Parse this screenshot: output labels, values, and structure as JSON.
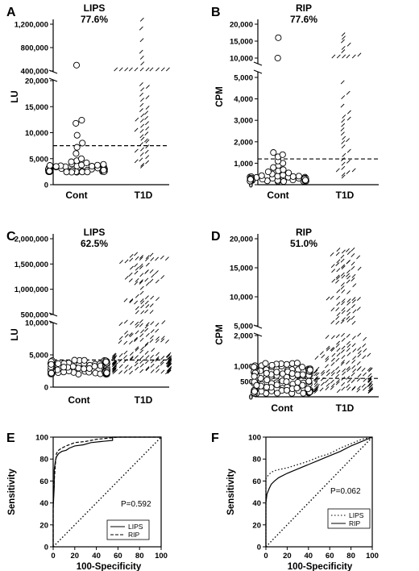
{
  "chart_data": [
    {
      "panel": "A",
      "type": "scatter",
      "title": "LIPS",
      "subtitle": "77.6%",
      "ylabel": "LU",
      "categories": [
        "Cont",
        "T1D"
      ],
      "y_axis_broken": true,
      "yticks_lower": [
        "0",
        "5,000",
        "10,000",
        "15,000",
        "20,000"
      ],
      "yticks_upper": [
        "400,000",
        "800,000",
        "1,200,000"
      ],
      "cutoff": 7500,
      "series": [
        {
          "category": "Cont",
          "marker": "circle",
          "values": [
            2400,
            2500,
            2600,
            2700,
            2800,
            2900,
            3000,
            3100,
            3200,
            3400,
            3600,
            3800,
            4000,
            4200,
            4600,
            5000,
            6000,
            7200,
            8000,
            9500,
            11800,
            12400,
            2450,
            2550,
            2650,
            2750,
            2850,
            2950,
            3050,
            3150,
            3250,
            3350,
            3450,
            3550,
            3650,
            3750,
            2500,
            2700,
            2900,
            3100,
            3300,
            2600,
            2800,
            3000,
            3200,
            3500,
            2400,
            2600,
            2800,
            3000,
            3200,
            3400,
            2450,
            2650,
            2850,
            3050,
            3250,
            2550,
            2750,
            2950,
            3150,
            2500,
            2700,
            2900,
            3100,
            2600,
            2800,
            3000,
            2450,
            2650,
            2850,
            3050,
            2550,
            2750,
            2950,
            2500,
            2700,
            2900,
            2600,
            2800,
            4400,
            3900,
            3700,
            500000
          ]
        },
        {
          "category": "T1D",
          "marker": "triangle",
          "values": [
            3500,
            4000,
            4500,
            5000,
            5500,
            6000,
            6500,
            7000,
            7500,
            8000,
            8500,
            9000,
            9500,
            10000,
            10500,
            11000,
            11500,
            12000,
            12500,
            13000,
            13500,
            14000,
            15000,
            16000,
            17000,
            18000,
            19000,
            3200,
            4200,
            6200,
            8200,
            10200,
            12200,
            14500,
            16500,
            18500,
            200000,
            200000,
            200000,
            200000,
            200000,
            200000,
            200000,
            200000,
            250000,
            300000,
            400000,
            500000,
            600000,
            700000,
            900000,
            1100000,
            1250000
          ]
        }
      ]
    },
    {
      "panel": "B",
      "type": "scatter",
      "title": "RIP",
      "subtitle": "77.6%",
      "ylabel": "CPM",
      "categories": [
        "Cont",
        "T1D"
      ],
      "y_axis_broken": true,
      "yticks_lower": [
        "0",
        "1,000",
        "2,000",
        "3,000",
        "4,000",
        "5,000"
      ],
      "yticks_upper": [
        "10,000",
        "15,000",
        "20,000"
      ],
      "cutoff": 1200,
      "series": [
        {
          "category": "Cont",
          "marker": "circle",
          "values": [
            150,
            200,
            250,
            300,
            350,
            400,
            450,
            500,
            550,
            600,
            650,
            700,
            800,
            900,
            1000,
            1100,
            1300,
            1400,
            1500,
            180,
            220,
            260,
            300,
            340,
            380,
            420,
            160,
            200,
            240,
            280,
            320,
            360,
            400,
            170,
            210,
            250,
            290,
            330,
            370,
            190,
            230,
            270,
            310,
            350,
            150,
            190,
            230,
            270,
            310,
            180,
            220,
            260,
            300,
            160,
            200,
            240,
            280,
            170,
            210,
            250,
            9000,
            16000
          ]
        },
        {
          "category": "T1D",
          "marker": "triangle",
          "values": [
            300,
            400,
            500,
            600,
            700,
            900,
            1100,
            1300,
            1500,
            1700,
            1900,
            2100,
            2300,
            2500,
            2700,
            2900,
            3100,
            3300,
            3600,
            4000,
            4200,
            4700,
            5500,
            6500,
            7500,
            8500,
            9500,
            10500,
            11500,
            12500,
            13500,
            14500,
            15500,
            16500,
            600,
            1000,
            2000,
            3000
          ]
        }
      ]
    },
    {
      "panel": "C",
      "type": "scatter",
      "title": "LIPS",
      "subtitle": "62.5%",
      "ylabel": "LU",
      "categories": [
        "Cont",
        "T1D"
      ],
      "y_axis_broken": true,
      "yticks_lower": [
        "0",
        "5,000",
        "10,000"
      ],
      "yticks_upper": [
        "500,000",
        "1,000,000",
        "1,500,000",
        "2,000,000"
      ],
      "cutoff": 4200,
      "series": [
        {
          "category": "Cont",
          "marker": "circle",
          "n": 110,
          "range": [
            2000,
            4200
          ]
        },
        {
          "category": "T1D",
          "marker": "triangle",
          "n": 210,
          "range": [
            2000,
            1700000
          ]
        }
      ]
    },
    {
      "panel": "D",
      "type": "scatter",
      "title": "RIP",
      "subtitle": "51.0%",
      "ylabel": "CPM",
      "categories": [
        "Cont",
        "T1D"
      ],
      "y_axis_broken": true,
      "yticks_lower": [
        "0",
        "500",
        "1,000",
        "2,000"
      ],
      "yticks_upper": [
        "5,000",
        "10,000",
        "15,000",
        "20,000"
      ],
      "cutoff": 600,
      "series": [
        {
          "category": "Cont",
          "marker": "circle",
          "n": 110,
          "range": [
            100,
            1100
          ]
        },
        {
          "category": "T1D",
          "marker": "triangle",
          "n": 210,
          "range": [
            100,
            18000
          ]
        }
      ]
    },
    {
      "panel": "E",
      "type": "line",
      "xlabel": "100-Specificity",
      "ylabel": "Sensitivity",
      "xlim": [
        0,
        100
      ],
      "ylim": [
        0,
        100
      ],
      "xticks": [
        "0",
        "20",
        "40",
        "60",
        "80",
        "100"
      ],
      "yticks": [
        "0",
        "20",
        "40",
        "60",
        "80",
        "100"
      ],
      "annotation": "P=0.592",
      "legend": [
        "LIPS",
        "RIP"
      ],
      "legend_position": "bottom-right",
      "series": [
        {
          "name": "LIPS",
          "style": "solid",
          "x": [
            0,
            0,
            1,
            1,
            2,
            3,
            5,
            8,
            12,
            15,
            20,
            28,
            35,
            45,
            55,
            55,
            100
          ],
          "y": [
            0,
            35,
            55,
            70,
            78,
            82,
            85,
            87,
            88,
            90,
            92,
            93,
            95,
            96,
            97,
            100,
            100
          ]
        },
        {
          "name": "RIP",
          "style": "dashed",
          "x": [
            0,
            0,
            1,
            2,
            3,
            5,
            8,
            12,
            20,
            30,
            35,
            40,
            50,
            60,
            100
          ],
          "y": [
            0,
            40,
            60,
            75,
            85,
            88,
            90,
            92,
            95,
            96,
            97,
            98,
            99,
            100,
            100
          ]
        },
        {
          "name": "reference",
          "style": "dotted",
          "x": [
            0,
            100
          ],
          "y": [
            0,
            100
          ]
        }
      ]
    },
    {
      "panel": "F",
      "type": "line",
      "xlabel": "100-Specificity",
      "ylabel": "Sensitivity",
      "xlim": [
        0,
        100
      ],
      "ylim": [
        0,
        100
      ],
      "xticks": [
        "0",
        "20",
        "40",
        "60",
        "80",
        "100"
      ],
      "yticks": [
        "0",
        "20",
        "40",
        "60",
        "80",
        "100"
      ],
      "annotation": "P=0.062",
      "legend": [
        "LIPS",
        "RIP"
      ],
      "legend_position": "bottom-right",
      "series": [
        {
          "name": "LIPS",
          "style": "dotted",
          "x": [
            0,
            0,
            2,
            5,
            10,
            20,
            30,
            40,
            50,
            60,
            70,
            80,
            90,
            100
          ],
          "y": [
            0,
            62,
            65,
            68,
            70,
            72,
            75,
            78,
            82,
            85,
            90,
            94,
            98,
            100
          ]
        },
        {
          "name": "RIP",
          "style": "solid",
          "x": [
            0,
            0,
            1,
            3,
            5,
            8,
            12,
            20,
            30,
            40,
            50,
            60,
            70,
            80,
            90,
            100
          ],
          "y": [
            0,
            40,
            48,
            53,
            57,
            60,
            63,
            67,
            71,
            75,
            79,
            83,
            87,
            92,
            96,
            100
          ]
        },
        {
          "name": "reference",
          "style": "dotted",
          "x": [
            0,
            100
          ],
          "y": [
            0,
            100
          ]
        }
      ]
    }
  ]
}
